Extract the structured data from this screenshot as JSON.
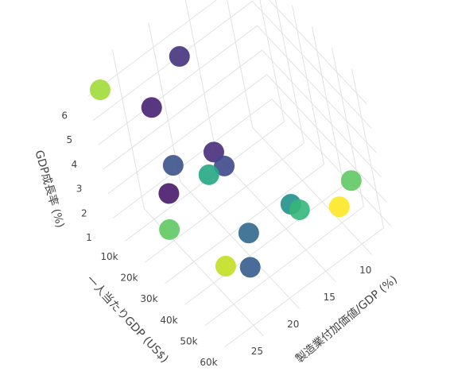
{
  "chart_data": {
    "type": "scatter3d",
    "x_label": "一人当たりGDP (US$)",
    "y_label": "製造業付加価値/GDP (%)",
    "z_label": "GDP成長率 (%)",
    "x": [
      11200,
      15700,
      19000,
      31800,
      35100,
      24300,
      31600,
      23800,
      23800,
      45900,
      42900,
      48300,
      49400,
      50000,
      55100,
      58100
    ],
    "y": [
      28.6,
      19.1,
      24.3,
      20.3,
      20.0,
      24.1,
      21.4,
      25.2,
      26.0,
      20.7,
      23.7,
      21.8,
      15.6,
      14.8,
      10.9,
      9.4
    ],
    "z": [
      6.7,
      6.35,
      5.7,
      4.1,
      3.75,
      3.75,
      3.4,
      2.8,
      1.5,
      2.1,
      1.15,
      1.15,
      2.45,
      2.1,
      1.8,
      2.8
    ],
    "colors": [
      "#a0da39",
      "#46327e",
      "#482173",
      "#472d7b",
      "#3e4989",
      "#3b528b",
      "#26a784",
      "#481a6c",
      "#5ec962",
      "#31688e",
      "#c2df23",
      "#365c8d",
      "#21918c",
      "#35b779",
      "#fde725",
      "#5ec962"
    ],
    "xlim": [
      5000,
      65000
    ],
    "ylim": [
      7,
      29
    ],
    "zlim": [
      0.5,
      7
    ],
    "xticks": [
      {
        "value": 10000,
        "label": "10k"
      },
      {
        "value": 20000,
        "label": "20k"
      },
      {
        "value": 30000,
        "label": "30k"
      },
      {
        "value": 40000,
        "label": "40k"
      },
      {
        "value": 50000,
        "label": "50k"
      },
      {
        "value": 60000,
        "label": "60k"
      }
    ],
    "yticks": [
      10,
      15,
      20,
      25
    ],
    "zticks": [
      1,
      2,
      3,
      4,
      5,
      6
    ],
    "grid": true
  }
}
